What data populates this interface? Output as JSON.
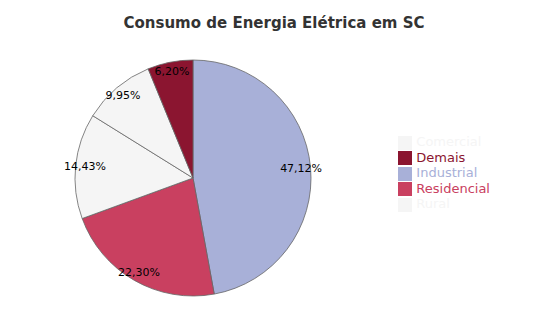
{
  "chart_data": {
    "type": "pie",
    "title": "Consumo de Energia Elétrica em SC",
    "categories": [
      "Industrial",
      "Residencial",
      "Comercial",
      "Rural",
      "Demais"
    ],
    "values": [
      47.12,
      22.3,
      14.43,
      9.95,
      6.2
    ],
    "value_labels": [
      "47,12%",
      "22,30%",
      "14,43%",
      "9,95%",
      "6,20%"
    ],
    "colors": [
      "#a8b0d8",
      "#c94060",
      "#f5f5f5",
      "#f5f5f5",
      "#8b1530"
    ],
    "data_labels": true,
    "legend": "right"
  }
}
